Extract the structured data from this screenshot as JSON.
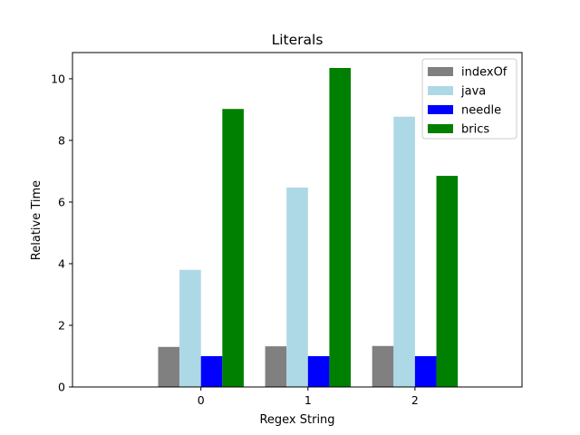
{
  "chart_data": {
    "type": "bar",
    "title": "Literals",
    "xlabel": "Regex String",
    "ylabel": "Relative Time",
    "categories": [
      "0",
      "1",
      "2"
    ],
    "xlim": [
      -1.2,
      3.0
    ],
    "ylim": [
      0,
      10.85
    ],
    "yticks": [
      0,
      2,
      4,
      6,
      8,
      10
    ],
    "grid": false,
    "legend_position": "top-right",
    "series": [
      {
        "name": "indexOf",
        "color": "#808080",
        "values": [
          1.3,
          1.32,
          1.33
        ]
      },
      {
        "name": "java",
        "color": "#add8e6",
        "values": [
          3.8,
          6.47,
          8.77
        ]
      },
      {
        "name": "needle",
        "color": "#0000ff",
        "values": [
          1.0,
          1.0,
          1.0
        ]
      },
      {
        "name": "brics",
        "color": "#008000",
        "values": [
          9.02,
          10.35,
          6.85
        ]
      }
    ]
  }
}
